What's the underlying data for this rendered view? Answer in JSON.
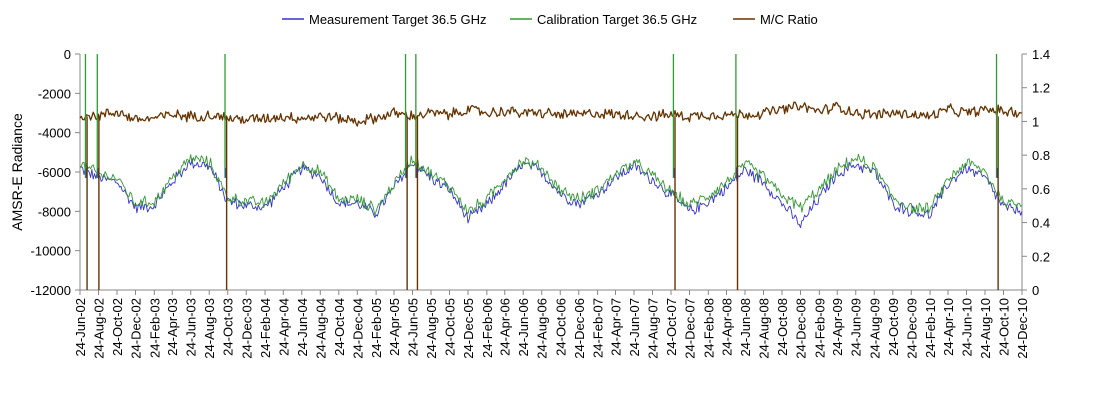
{
  "chart_data": {
    "type": "line",
    "title": "",
    "legend_position": "top",
    "grid": false,
    "ylabel_left": "AMSR-E Radiance",
    "ylabel_right": "",
    "ylim_left": [
      -12000,
      0
    ],
    "ylim_right": [
      0,
      1.4
    ],
    "yticks_left": [
      "0",
      "-2000",
      "-4000",
      "-6000",
      "-8000",
      "-10000",
      "-12000"
    ],
    "yticks_right": [
      "1.4",
      "1.2",
      "1",
      "0.8",
      "0.6",
      "0.4",
      "0.2",
      "0"
    ],
    "x_range": [
      "24-Jun-02",
      "24-Dec-10"
    ],
    "x_tick_labels": [
      "24-Jun-02",
      "24-Aug-02",
      "24-Oct-02",
      "24-Dec-02",
      "24-Feb-03",
      "24-Apr-03",
      "24-Jun-03",
      "24-Aug-03",
      "24-Oct-03",
      "24-Dec-03",
      "24-Feb-04",
      "24-Apr-04",
      "24-Jun-04",
      "24-Aug-04",
      "24-Oct-04",
      "24-Dec-04",
      "24-Feb-05",
      "24-Apr-05",
      "24-Jun-05",
      "24-Aug-05",
      "24-Oct-05",
      "24-Dec-05",
      "24-Feb-06",
      "24-Apr-06",
      "24-Jun-06",
      "24-Aug-06",
      "24-Oct-06",
      "24-Dec-06",
      "24-Feb-07",
      "24-Apr-07",
      "24-Jun-07",
      "24-Aug-07",
      "24-Oct-07",
      "24-Dec-07",
      "24-Feb-08",
      "24-Apr-08",
      "24-Jun-08",
      "24-Aug-08",
      "24-Oct-08",
      "24-Dec-08",
      "24-Feb-09",
      "24-Apr-09",
      "24-Jun-09",
      "24-Aug-09",
      "24-Oct-09",
      "24-Dec-09",
      "24-Feb-10",
      "24-Apr-10",
      "24-Jun-10",
      "24-Aug-10",
      "24-Oct-10",
      "24-Dec-10"
    ],
    "series": [
      {
        "name": "Measurement Target 36.5 GHz",
        "axis": "left",
        "color": "#3333cc",
        "points": [
          [
            "24-Jun-02",
            -5800
          ],
          [
            "24-Aug-02",
            -6300
          ],
          [
            "24-Oct-02",
            -6500
          ],
          [
            "24-Dec-02",
            -7800
          ],
          [
            "24-Feb-03",
            -7700
          ],
          [
            "24-Apr-03",
            -6500
          ],
          [
            "24-Jun-03",
            -5500
          ],
          [
            "24-Aug-03",
            -5700
          ],
          [
            "24-Oct-03",
            -7500
          ],
          [
            "24-Dec-03",
            -7700
          ],
          [
            "24-Feb-04",
            -7800
          ],
          [
            "24-Apr-04",
            -6800
          ],
          [
            "24-Jun-04",
            -5800
          ],
          [
            "24-Aug-04",
            -6200
          ],
          [
            "24-Oct-04",
            -7600
          ],
          [
            "24-Dec-04",
            -7600
          ],
          [
            "24-Feb-05",
            -8100
          ],
          [
            "24-Apr-05",
            -6800
          ],
          [
            "24-Jun-05",
            -5500
          ],
          [
            "24-Aug-05",
            -6300
          ],
          [
            "24-Oct-05",
            -6900
          ],
          [
            "24-Dec-05",
            -8400
          ],
          [
            "24-Feb-06",
            -7700
          ],
          [
            "24-Apr-06",
            -6600
          ],
          [
            "24-Jun-06",
            -5600
          ],
          [
            "24-Aug-06",
            -6000
          ],
          [
            "24-Oct-06",
            -7100
          ],
          [
            "24-Dec-06",
            -7600
          ],
          [
            "24-Feb-07",
            -7100
          ],
          [
            "24-Apr-07",
            -6300
          ],
          [
            "24-Jun-07",
            -5700
          ],
          [
            "24-Aug-07",
            -6400
          ],
          [
            "24-Oct-07",
            -7200
          ],
          [
            "24-Dec-07",
            -8000
          ],
          [
            "24-Feb-08",
            -7500
          ],
          [
            "24-Apr-08",
            -6800
          ],
          [
            "24-Jun-08",
            -5900
          ],
          [
            "24-Aug-08",
            -6500
          ],
          [
            "24-Oct-08",
            -7600
          ],
          [
            "24-Dec-08",
            -8700
          ],
          [
            "24-Feb-09",
            -7300
          ],
          [
            "24-Apr-09",
            -6100
          ],
          [
            "24-Jun-09",
            -5600
          ],
          [
            "24-Aug-09",
            -6000
          ],
          [
            "24-Oct-09",
            -7600
          ],
          [
            "24-Dec-09",
            -8000
          ],
          [
            "24-Feb-10",
            -8200
          ],
          [
            "24-Apr-10",
            -6600
          ],
          [
            "24-Jun-10",
            -5800
          ],
          [
            "24-Aug-10",
            -6300
          ],
          [
            "24-Oct-10",
            -7800
          ],
          [
            "24-Dec-10",
            -8000
          ]
        ]
      },
      {
        "name": "Calibration Target 36.5 GHz",
        "axis": "left",
        "color": "#339933",
        "points": [
          [
            "24-Jun-02",
            -5600
          ],
          [
            "24-Aug-02",
            -6100
          ],
          [
            "24-Oct-02",
            -6300
          ],
          [
            "24-Dec-02",
            -7600
          ],
          [
            "24-Feb-03",
            -7500
          ],
          [
            "24-Apr-03",
            -6300
          ],
          [
            "24-Jun-03",
            -5300
          ],
          [
            "24-Aug-03",
            -5500
          ],
          [
            "24-Oct-03",
            -7300
          ],
          [
            "24-Dec-03",
            -7500
          ],
          [
            "24-Feb-04",
            -7600
          ],
          [
            "24-Apr-04",
            -6600
          ],
          [
            "24-Jun-04",
            -5600
          ],
          [
            "24-Aug-04",
            -6000
          ],
          [
            "24-Oct-04",
            -7400
          ],
          [
            "24-Dec-04",
            -7400
          ],
          [
            "24-Feb-05",
            -7900
          ],
          [
            "24-Apr-05",
            -6600
          ],
          [
            "24-Jun-05",
            -5300
          ],
          [
            "24-Aug-05",
            -6100
          ],
          [
            "24-Oct-05",
            -6700
          ],
          [
            "24-Dec-05",
            -8000
          ],
          [
            "24-Feb-06",
            -7400
          ],
          [
            "24-Apr-06",
            -6300
          ],
          [
            "24-Jun-06",
            -5400
          ],
          [
            "24-Aug-06",
            -5800
          ],
          [
            "24-Oct-06",
            -6900
          ],
          [
            "24-Dec-06",
            -7400
          ],
          [
            "24-Feb-07",
            -6900
          ],
          [
            "24-Apr-07",
            -6100
          ],
          [
            "24-Jun-07",
            -5500
          ],
          [
            "24-Aug-07",
            -6200
          ],
          [
            "24-Oct-07",
            -7000
          ],
          [
            "24-Dec-07",
            -7700
          ],
          [
            "24-Feb-08",
            -7200
          ],
          [
            "24-Apr-08",
            -6500
          ],
          [
            "24-Jun-08",
            -5600
          ],
          [
            "24-Aug-08",
            -6200
          ],
          [
            "24-Oct-08",
            -7200
          ],
          [
            "24-Dec-08",
            -7800
          ],
          [
            "24-Feb-09",
            -6900
          ],
          [
            "24-Apr-09",
            -5900
          ],
          [
            "24-Jun-09",
            -5300
          ],
          [
            "24-Aug-09",
            -5800
          ],
          [
            "24-Oct-09",
            -7300
          ],
          [
            "24-Dec-09",
            -7800
          ],
          [
            "24-Feb-10",
            -7900
          ],
          [
            "24-Apr-10",
            -6400
          ],
          [
            "24-Jun-10",
            -5500
          ],
          [
            "24-Aug-10",
            -6000
          ],
          [
            "24-Oct-10",
            -7500
          ],
          [
            "24-Dec-10",
            -7700
          ]
        ]
      },
      {
        "name": "M/C Ratio",
        "axis": "right",
        "color": "#663300",
        "points": [
          [
            "24-Jun-02",
            1.04
          ],
          [
            "24-Aug-02",
            1.03
          ],
          [
            "24-Oct-02",
            1.06
          ],
          [
            "24-Dec-02",
            1.01
          ],
          [
            "24-Feb-03",
            1.02
          ],
          [
            "24-Apr-03",
            1.04
          ],
          [
            "24-Jun-03",
            1.03
          ],
          [
            "24-Aug-03",
            1.04
          ],
          [
            "24-Oct-03",
            1.02
          ],
          [
            "24-Dec-03",
            1.01
          ],
          [
            "24-Feb-04",
            1.02
          ],
          [
            "24-Apr-04",
            1.03
          ],
          [
            "24-Jun-04",
            1.02
          ],
          [
            "24-Aug-04",
            1.03
          ],
          [
            "24-Oct-04",
            1.02
          ],
          [
            "24-Dec-04",
            1.0
          ],
          [
            "24-Feb-05",
            1.02
          ],
          [
            "24-Apr-05",
            1.05
          ],
          [
            "24-Jun-05",
            1.03
          ],
          [
            "24-Aug-05",
            1.05
          ],
          [
            "24-Oct-05",
            1.04
          ],
          [
            "24-Dec-05",
            1.07
          ],
          [
            "24-Feb-06",
            1.05
          ],
          [
            "24-Apr-06",
            1.06
          ],
          [
            "24-Jun-06",
            1.05
          ],
          [
            "24-Aug-06",
            1.05
          ],
          [
            "24-Oct-06",
            1.04
          ],
          [
            "24-Dec-06",
            1.04
          ],
          [
            "24-Feb-07",
            1.05
          ],
          [
            "24-Apr-07",
            1.04
          ],
          [
            "24-Jun-07",
            1.04
          ],
          [
            "24-Aug-07",
            1.03
          ],
          [
            "24-Oct-07",
            1.04
          ],
          [
            "24-Dec-07",
            1.03
          ],
          [
            "24-Feb-08",
            1.04
          ],
          [
            "24-Apr-08",
            1.04
          ],
          [
            "24-Jun-08",
            1.04
          ],
          [
            "24-Aug-08",
            1.05
          ],
          [
            "24-Oct-08",
            1.07
          ],
          [
            "24-Dec-08",
            1.09
          ],
          [
            "24-Feb-09",
            1.06
          ],
          [
            "24-Apr-09",
            1.09
          ],
          [
            "24-Jun-09",
            1.05
          ],
          [
            "24-Aug-09",
            1.04
          ],
          [
            "24-Oct-09",
            1.05
          ],
          [
            "24-Dec-09",
            1.04
          ],
          [
            "24-Feb-10",
            1.03
          ],
          [
            "24-Apr-10",
            1.07
          ],
          [
            "24-Jun-10",
            1.05
          ],
          [
            "24-Aug-10",
            1.07
          ],
          [
            "24-Oct-10",
            1.06
          ],
          [
            "24-Dec-10",
            1.05
          ]
        ]
      }
    ],
    "spikes": [
      {
        "date": "12-Jul-02",
        "left_to": 0,
        "right_to": 0
      },
      {
        "date": "20-Aug-02",
        "left_to": 0,
        "right_to": 0
      },
      {
        "date": "15-Oct-03",
        "left_to": 0,
        "right_to": 0
      },
      {
        "date": "01-Jun-05",
        "left_to": 0,
        "right_to": 0
      },
      {
        "date": "05-Jul-05",
        "left_to": 0,
        "right_to": 0
      },
      {
        "date": "01-Nov-07",
        "left_to": 0,
        "right_to": 0
      },
      {
        "date": "25-May-08",
        "left_to": 0,
        "right_to": 0
      },
      {
        "date": "01-Oct-10",
        "left_to": 0,
        "right_to": 0
      }
    ]
  }
}
